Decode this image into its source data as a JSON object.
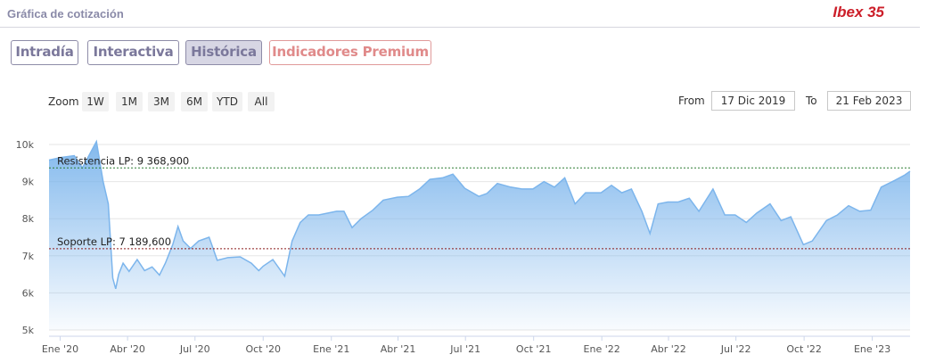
{
  "header": {
    "title": "Gráfica de cotización",
    "index_name": "Ibex 35"
  },
  "tabs": [
    {
      "label": "Intradía",
      "active": false
    },
    {
      "label": "Interactiva",
      "active": false
    },
    {
      "label": "Histórica",
      "active": true
    },
    {
      "label": "Indicadores Premium",
      "active": false
    }
  ],
  "zoom": {
    "label": "Zoom",
    "buttons": [
      "1W",
      "1M",
      "3M",
      "6M",
      "YTD",
      "All"
    ]
  },
  "range": {
    "from_label": "From",
    "from_value": "17 Dic 2019",
    "to_label": "To",
    "to_value": "21 Feb 2023"
  },
  "colors": {
    "line": "#7cb5ec",
    "resistance": "#2e7d32",
    "support": "#8b1a1a",
    "accent": "#cc1f2a"
  },
  "chart_data": {
    "type": "area",
    "ylim": [
      5000,
      10000
    ],
    "y_ticks": [
      {
        "label": "5k",
        "value": 5000
      },
      {
        "label": "6k",
        "value": 6000
      },
      {
        "label": "7k",
        "value": 7000
      },
      {
        "label": "8k",
        "value": 8000
      },
      {
        "label": "9k",
        "value": 9000
      },
      {
        "label": "10k",
        "value": 10000
      }
    ],
    "x_range": [
      "2019-12-17",
      "2023-02-21"
    ],
    "x_ticks": [
      {
        "label": "Ene '20",
        "date": "2020-01-01"
      },
      {
        "label": "Abr '20",
        "date": "2020-04-01"
      },
      {
        "label": "Jul '20",
        "date": "2020-07-01"
      },
      {
        "label": "Oct '20",
        "date": "2020-10-01"
      },
      {
        "label": "Ene '21",
        "date": "2021-01-01"
      },
      {
        "label": "Abr '21",
        "date": "2021-04-01"
      },
      {
        "label": "Jul '21",
        "date": "2021-07-01"
      },
      {
        "label": "Oct '21",
        "date": "2021-10-01"
      },
      {
        "label": "Ene '22",
        "date": "2022-01-01"
      },
      {
        "label": "Abr '22",
        "date": "2022-04-01"
      },
      {
        "label": "Jul '22",
        "date": "2022-07-01"
      },
      {
        "label": "Oct '22",
        "date": "2022-10-01"
      },
      {
        "label": "Ene '23",
        "date": "2023-01-01"
      }
    ],
    "series": [
      {
        "points": [
          [
            "2019-12-17",
            9580
          ],
          [
            "2020-01-02",
            9650
          ],
          [
            "2020-01-20",
            9700
          ],
          [
            "2020-01-31",
            9370
          ],
          [
            "2020-02-19",
            10080
          ],
          [
            "2020-02-28",
            9000
          ],
          [
            "2020-03-06",
            8400
          ],
          [
            "2020-03-12",
            6400
          ],
          [
            "2020-03-16",
            6110
          ],
          [
            "2020-03-20",
            6500
          ],
          [
            "2020-03-26",
            6800
          ],
          [
            "2020-04-03",
            6580
          ],
          [
            "2020-04-14",
            6900
          ],
          [
            "2020-04-24",
            6600
          ],
          [
            "2020-05-04",
            6700
          ],
          [
            "2020-05-14",
            6480
          ],
          [
            "2020-05-22",
            6800
          ],
          [
            "2020-06-01",
            7300
          ],
          [
            "2020-06-08",
            7790
          ],
          [
            "2020-06-15",
            7400
          ],
          [
            "2020-06-25",
            7200
          ],
          [
            "2020-07-06",
            7400
          ],
          [
            "2020-07-20",
            7500
          ],
          [
            "2020-07-31",
            6880
          ],
          [
            "2020-08-14",
            6950
          ],
          [
            "2020-08-31",
            6970
          ],
          [
            "2020-09-15",
            6800
          ],
          [
            "2020-09-25",
            6600
          ],
          [
            "2020-10-01",
            6720
          ],
          [
            "2020-10-14",
            6900
          ],
          [
            "2020-10-30",
            6450
          ],
          [
            "2020-11-09",
            7400
          ],
          [
            "2020-11-20",
            7900
          ],
          [
            "2020-12-01",
            8100
          ],
          [
            "2020-12-15",
            8100
          ],
          [
            "2021-01-08",
            8200
          ],
          [
            "2021-01-18",
            8200
          ],
          [
            "2021-01-29",
            7760
          ],
          [
            "2021-02-10",
            8000
          ],
          [
            "2021-02-26",
            8230
          ],
          [
            "2021-03-12",
            8500
          ],
          [
            "2021-03-31",
            8580
          ],
          [
            "2021-04-15",
            8600
          ],
          [
            "2021-04-30",
            8800
          ],
          [
            "2021-05-14",
            9060
          ],
          [
            "2021-05-31",
            9100
          ],
          [
            "2021-06-14",
            9200
          ],
          [
            "2021-06-30",
            8820
          ],
          [
            "2021-07-19",
            8600
          ],
          [
            "2021-07-30",
            8680
          ],
          [
            "2021-08-13",
            8950
          ],
          [
            "2021-08-31",
            8850
          ],
          [
            "2021-09-15",
            8800
          ],
          [
            "2021-09-30",
            8800
          ],
          [
            "2021-10-15",
            9000
          ],
          [
            "2021-10-29",
            8850
          ],
          [
            "2021-11-12",
            9100
          ],
          [
            "2021-11-26",
            8400
          ],
          [
            "2021-12-10",
            8700
          ],
          [
            "2021-12-31",
            8700
          ],
          [
            "2022-01-14",
            8900
          ],
          [
            "2022-01-28",
            8700
          ],
          [
            "2022-02-10",
            8800
          ],
          [
            "2022-02-24",
            8200
          ],
          [
            "2022-03-07",
            7600
          ],
          [
            "2022-03-18",
            8400
          ],
          [
            "2022-03-31",
            8450
          ],
          [
            "2022-04-14",
            8450
          ],
          [
            "2022-04-29",
            8550
          ],
          [
            "2022-05-12",
            8200
          ],
          [
            "2022-05-31",
            8800
          ],
          [
            "2022-06-16",
            8100
          ],
          [
            "2022-06-30",
            8100
          ],
          [
            "2022-07-15",
            7900
          ],
          [
            "2022-07-29",
            8150
          ],
          [
            "2022-08-16",
            8400
          ],
          [
            "2022-08-31",
            7950
          ],
          [
            "2022-09-13",
            8050
          ],
          [
            "2022-09-30",
            7300
          ],
          [
            "2022-10-12",
            7400
          ],
          [
            "2022-10-31",
            7950
          ],
          [
            "2022-11-15",
            8100
          ],
          [
            "2022-11-30",
            8350
          ],
          [
            "2022-12-15",
            8200
          ],
          [
            "2022-12-30",
            8230
          ],
          [
            "2023-01-13",
            8850
          ],
          [
            "2023-01-31",
            9030
          ],
          [
            "2023-02-14",
            9180
          ],
          [
            "2023-02-21",
            9280
          ]
        ]
      }
    ],
    "plot_lines": [
      {
        "label": "Resistencia LP: 9 368,900",
        "value": 9368.9,
        "kind": "resistance"
      },
      {
        "label": "Soporte LP: 7 189,600",
        "value": 7189.6,
        "kind": "support"
      }
    ]
  }
}
